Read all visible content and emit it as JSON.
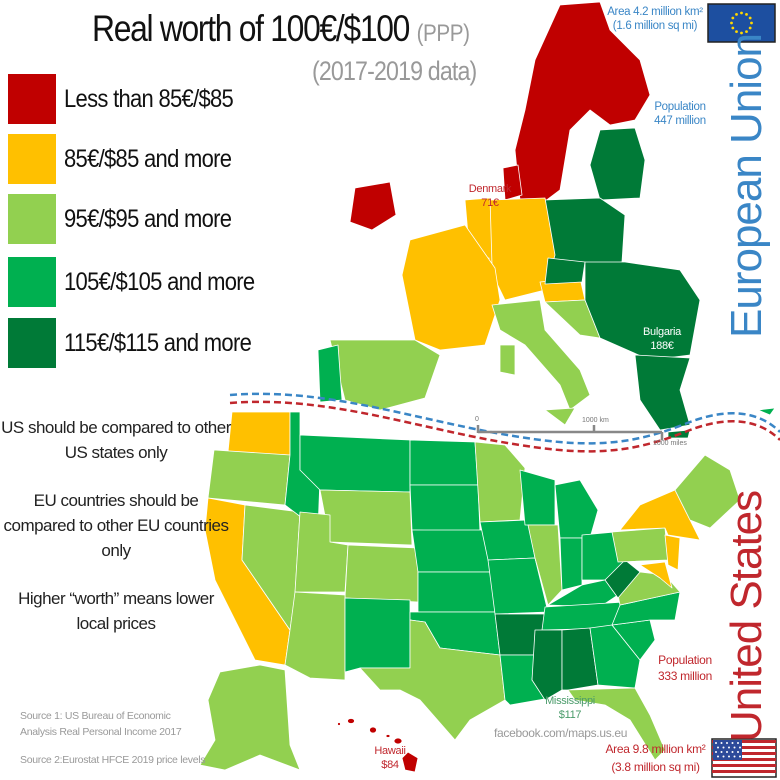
{
  "title": {
    "main": "Real worth of 100€/$100",
    "suffix": "(PPP)",
    "subtitle": "(2017-2019 data)"
  },
  "legend": [
    {
      "label": "Less than 85€/$85",
      "color": "#c00000"
    },
    {
      "label": "85€/$85 and more",
      "color": "#ffc000"
    },
    {
      "label": "95€/$95 and more",
      "color": "#92d050"
    },
    {
      "label": "105€/$105 and more",
      "color": "#00b050"
    },
    {
      "label": "115€/$115 and more",
      "color": "#007a37"
    }
  ],
  "notes": [
    "US should be compared to other US states only",
    "EU countries should be compared to other EU countries only",
    "Higher “worth” means lower local prices"
  ],
  "sources": [
    "Source 1: US Bureau of Economic Analysis Real Personal Income 2017",
    "Source 2:Eurostat HFCE 2019 price levels"
  ],
  "eu": {
    "name": "European Union",
    "area": "Area 4.2 million km²",
    "area_mi": "(1.6 million sq mi)",
    "population_label": "Population",
    "population": "447 million",
    "callouts": [
      {
        "name": "Denmark",
        "value": "71€"
      },
      {
        "name": "Bulgaria",
        "value": "188€"
      }
    ]
  },
  "us": {
    "name": "United States",
    "area": "Area 9.8 million km²",
    "area_mi": "(3.8 million sq mi)",
    "population_label": "Population",
    "population": "333 million",
    "callouts": [
      {
        "name": "Mississippi",
        "value": "$117"
      },
      {
        "name": "Hawaii",
        "value": "$84"
      }
    ]
  },
  "scale": {
    "zero": "0",
    "km": "1000 km",
    "miles": "1000 miles"
  },
  "credit": "facebook.com/maps.us.eu"
}
